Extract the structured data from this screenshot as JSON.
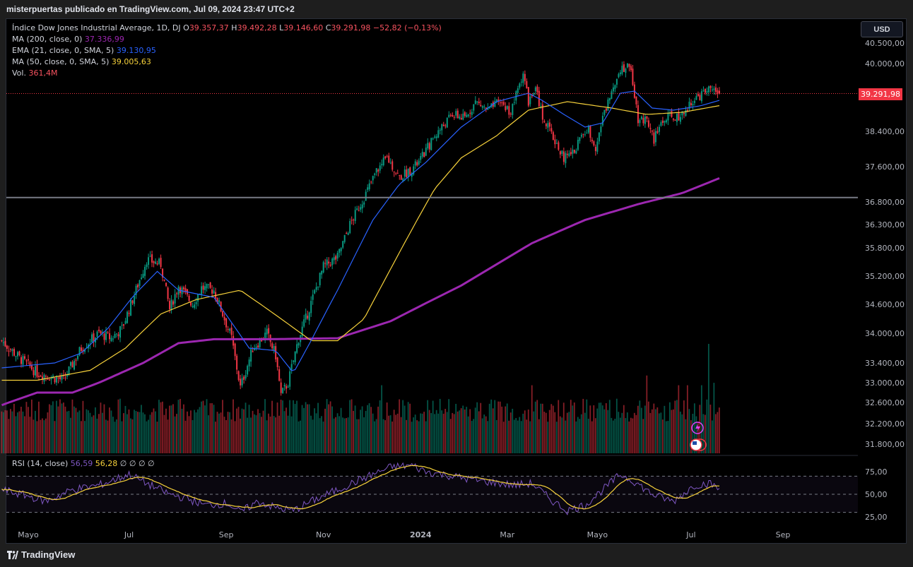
{
  "header": {
    "title": "misterpuertas publicado en TradingView.com, Jul 09, 2024 23:47 UTC+2"
  },
  "footer": {
    "brand": "TradingView"
  },
  "currency_button": "USD",
  "last_price_label": "39.291,98",
  "legend": {
    "symbol": "Índice Dow Jones Industrial Average, 1D, DJ",
    "o_label": "O",
    "o_value": "39.357,37",
    "h_label": "H",
    "h_value": "39.492,28",
    "l_label": "L",
    "l_value": "39.146,60",
    "c_label": "C",
    "c_value": "39.291,98",
    "change": "−52,82 (−0,13%)",
    "ma200_label": "MA (200, close, 0)",
    "ma200_value": "37.336,99",
    "ema21_label": "EMA (21, close, 0, SMA, 5)",
    "ema21_value": "39.130,95",
    "ma50_label": "MA (50, close, 0, SMA, 5)",
    "ma50_value": "39.005,63",
    "vol_label": "Vol.",
    "vol_value": "361,4M"
  },
  "rsi_legend": {
    "label": "RSI (14, close)",
    "rsi_value": "56,59",
    "ma_value": "56,28",
    "extras": "∅ ∅ ∅ ∅"
  },
  "colors": {
    "up": "#089981",
    "down": "#f23645",
    "ma200": "#9c27b0",
    "ema21": "#2962ff",
    "ma50": "#f7d23b",
    "rsi": "#7e57c2",
    "rsi_ma": "#f7d23b",
    "hline": "#787b86"
  },
  "chart_data": {
    "type": "candlestick",
    "price_axis": {
      "ticks": [
        40500,
        40000,
        38400,
        37600,
        36800,
        36300,
        35800,
        35200,
        34600,
        34000,
        33400,
        33000,
        32600,
        32200,
        31800
      ],
      "tick_labels": [
        "40.500,00",
        "40.000,00",
        "38.400,00",
        "37.600,00",
        "36.800,00",
        "36.300,00",
        "35.800,00",
        "35.200,00",
        "34.600,00",
        "34.000,00",
        "33.400,00",
        "33.000,00",
        "32.600,00",
        "32.200,00",
        "31.800,00"
      ]
    },
    "time_axis": {
      "labels": [
        "Mayo",
        "Jul",
        "Sep",
        "Nov",
        "2024",
        "Mar",
        "Mayo",
        "Jul",
        "Sep"
      ],
      "bar_index": [
        15,
        72,
        127,
        182,
        237,
        286,
        337,
        390,
        442
      ]
    },
    "horizontal_line": 36900,
    "last_close": 39291.98,
    "close_anchors": [
      [
        0,
        33850
      ],
      [
        10,
        33500
      ],
      [
        20,
        33200
      ],
      [
        35,
        33050
      ],
      [
        45,
        33700
      ],
      [
        55,
        34000
      ],
      [
        62,
        33900
      ],
      [
        68,
        34100
      ],
      [
        75,
        34800
      ],
      [
        82,
        35550
      ],
      [
        90,
        35450
      ],
      [
        95,
        34500
      ],
      [
        100,
        35000
      ],
      [
        108,
        34600
      ],
      [
        113,
        34950
      ],
      [
        120,
        34900
      ],
      [
        130,
        33900
      ],
      [
        135,
        32900
      ],
      [
        142,
        33700
      ],
      [
        150,
        34000
      ],
      [
        155,
        33550
      ],
      [
        158,
        32750
      ],
      [
        162,
        33000
      ],
      [
        168,
        33900
      ],
      [
        172,
        34300
      ],
      [
        182,
        35400
      ],
      [
        190,
        35600
      ],
      [
        197,
        36300
      ],
      [
        205,
        36900
      ],
      [
        212,
        37500
      ],
      [
        218,
        37800
      ],
      [
        225,
        37350
      ],
      [
        232,
        37550
      ],
      [
        236,
        37700
      ],
      [
        245,
        38300
      ],
      [
        255,
        38800
      ],
      [
        262,
        38700
      ],
      [
        268,
        39100
      ],
      [
        275,
        38900
      ],
      [
        282,
        39100
      ],
      [
        288,
        38850
      ],
      [
        295,
        39800
      ],
      [
        298,
        39100
      ],
      [
        302,
        39400
      ],
      [
        306,
        38750
      ],
      [
        312,
        38250
      ],
      [
        318,
        37800
      ],
      [
        323,
        37900
      ],
      [
        328,
        38300
      ],
      [
        332,
        38450
      ],
      [
        336,
        38050
      ],
      [
        340,
        38700
      ],
      [
        346,
        39500
      ],
      [
        350,
        39900
      ],
      [
        356,
        39900
      ],
      [
        360,
        38700
      ],
      [
        365,
        38700
      ],
      [
        369,
        38200
      ],
      [
        373,
        38600
      ],
      [
        378,
        38750
      ],
      [
        384,
        38700
      ],
      [
        390,
        39100
      ],
      [
        397,
        39300
      ],
      [
        402,
        39450
      ],
      [
        406,
        39291.98
      ]
    ],
    "ma200_anchors": [
      [
        0,
        32550
      ],
      [
        20,
        32800
      ],
      [
        40,
        32800
      ],
      [
        55,
        33000
      ],
      [
        80,
        33400
      ],
      [
        100,
        33800
      ],
      [
        120,
        33880
      ],
      [
        150,
        33880
      ],
      [
        190,
        33900
      ],
      [
        220,
        34250
      ],
      [
        260,
        35000
      ],
      [
        300,
        35900
      ],
      [
        330,
        36400
      ],
      [
        360,
        36750
      ],
      [
        385,
        37000
      ],
      [
        406,
        37337
      ]
    ],
    "ma50_anchors": [
      [
        0,
        33050
      ],
      [
        20,
        33050
      ],
      [
        50,
        33250
      ],
      [
        70,
        33700
      ],
      [
        90,
        34400
      ],
      [
        110,
        34700
      ],
      [
        135,
        34900
      ],
      [
        158,
        34300
      ],
      [
        175,
        33850
      ],
      [
        190,
        33850
      ],
      [
        205,
        34300
      ],
      [
        225,
        35700
      ],
      [
        245,
        37100
      ],
      [
        260,
        37800
      ],
      [
        280,
        38300
      ],
      [
        298,
        38900
      ],
      [
        320,
        39100
      ],
      [
        345,
        38950
      ],
      [
        365,
        38800
      ],
      [
        385,
        38850
      ],
      [
        406,
        39006
      ]
    ],
    "ema21_anchors": [
      [
        0,
        33300
      ],
      [
        30,
        33400
      ],
      [
        45,
        33600
      ],
      [
        60,
        34100
      ],
      [
        75,
        34800
      ],
      [
        88,
        35300
      ],
      [
        100,
        34900
      ],
      [
        120,
        34750
      ],
      [
        140,
        33700
      ],
      [
        155,
        33650
      ],
      [
        165,
        33200
      ],
      [
        175,
        33850
      ],
      [
        190,
        34900
      ],
      [
        210,
        36400
      ],
      [
        225,
        37200
      ],
      [
        240,
        37700
      ],
      [
        260,
        38500
      ],
      [
        280,
        39100
      ],
      [
        298,
        39300
      ],
      [
        305,
        39150
      ],
      [
        318,
        38800
      ],
      [
        330,
        38500
      ],
      [
        340,
        38600
      ],
      [
        350,
        39300
      ],
      [
        358,
        39350
      ],
      [
        368,
        38950
      ],
      [
        380,
        38900
      ],
      [
        395,
        39000
      ],
      [
        406,
        39131
      ]
    ],
    "volume": {
      "max": 900000000,
      "last": 361400000,
      "spikes": [
        [
          215,
          560000000
        ],
        [
          300,
          560000000
        ],
        [
          365,
          640000000
        ],
        [
          383,
          560000000
        ],
        [
          388,
          560000000
        ],
        [
          396,
          560000000
        ],
        [
          400,
          900000000
        ],
        [
          403,
          580000000
        ]
      ]
    },
    "rsi": {
      "levels": [
        70,
        50,
        30
      ],
      "tick_labels": [
        "75,00",
        "50,00",
        "25,00"
      ],
      "last": 56.59,
      "ma_last": 56.28,
      "anchors": [
        [
          0,
          55
        ],
        [
          15,
          48
        ],
        [
          25,
          42
        ],
        [
          40,
          55
        ],
        [
          55,
          60
        ],
        [
          72,
          72
        ],
        [
          82,
          62
        ],
        [
          95,
          50
        ],
        [
          105,
          45
        ],
        [
          115,
          38
        ],
        [
          128,
          40
        ],
        [
          135,
          30
        ],
        [
          145,
          42
        ],
        [
          155,
          35
        ],
        [
          165,
          32
        ],
        [
          175,
          42
        ],
        [
          190,
          55
        ],
        [
          205,
          68
        ],
        [
          220,
          80
        ],
        [
          232,
          82
        ],
        [
          240,
          75
        ],
        [
          255,
          70
        ],
        [
          270,
          65
        ],
        [
          290,
          60
        ],
        [
          300,
          62
        ],
        [
          312,
          42
        ],
        [
          320,
          32
        ],
        [
          330,
          38
        ],
        [
          340,
          55
        ],
        [
          350,
          72
        ],
        [
          358,
          64
        ],
        [
          368,
          50
        ],
        [
          380,
          42
        ],
        [
          392,
          60
        ],
        [
          400,
          62
        ],
        [
          406,
          57
        ]
      ]
    }
  }
}
